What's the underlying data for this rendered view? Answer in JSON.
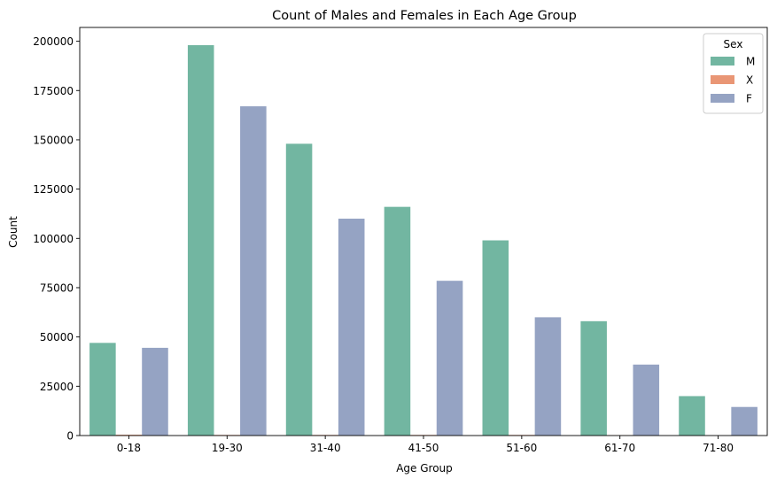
{
  "chart_data": {
    "type": "bar",
    "title": "Count of Males and Females in Each Age Group",
    "xlabel": "Age Group",
    "ylabel": "Count",
    "categories": [
      "0-18",
      "19-30",
      "31-40",
      "41-50",
      "51-60",
      "61-70",
      "71-80"
    ],
    "ylim": [
      0,
      207000
    ],
    "yticks": [
      0,
      25000,
      50000,
      75000,
      100000,
      125000,
      150000,
      175000,
      200000
    ],
    "ytick_labels": [
      "0",
      "25000",
      "50000",
      "75000",
      "100000",
      "125000",
      "150000",
      "175000",
      "200000"
    ],
    "grid": false,
    "legend": {
      "title": "Sex",
      "position": "top-right"
    },
    "series": [
      {
        "name": "M",
        "color": "#72b6a1",
        "values": [
          47000,
          198000,
          148000,
          116000,
          99000,
          58000,
          20000
        ]
      },
      {
        "name": "X",
        "color": "#e99675",
        "values": [
          400,
          300,
          300,
          300,
          300,
          200,
          0
        ]
      },
      {
        "name": "F",
        "color": "#95a3c3",
        "values": [
          44500,
          167000,
          110000,
          78500,
          60000,
          36000,
          14500
        ]
      }
    ]
  }
}
